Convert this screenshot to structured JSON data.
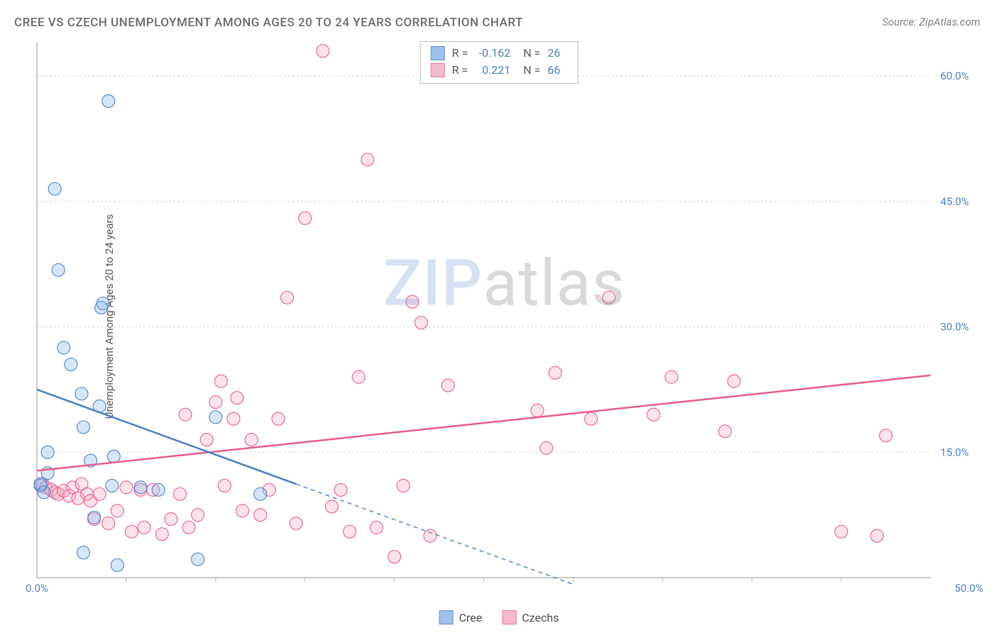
{
  "title": "CREE VS CZECH UNEMPLOYMENT AMONG AGES 20 TO 24 YEARS CORRELATION CHART",
  "source": "Source: ZipAtlas.com",
  "y_axis_label": "Unemployment Among Ages 20 to 24 years",
  "watermark_prefix": "ZIP",
  "watermark_suffix": "atlas",
  "chart": {
    "type": "scatter",
    "xlim": [
      0,
      50
    ],
    "ylim": [
      0,
      64
    ],
    "x_ticks_major": [
      0,
      50
    ],
    "x_ticks_minor": [
      5,
      10,
      15,
      20,
      25,
      30,
      35,
      40,
      45
    ],
    "y_ticks": [
      15,
      30,
      45,
      60
    ],
    "x_tick_labels": [
      "0.0%",
      "50.0%"
    ],
    "y_tick_labels": [
      "15.0%",
      "30.0%",
      "45.0%",
      "60.0%"
    ],
    "series": [
      {
        "name": "Cree",
        "label": "Cree",
        "color_fill": "#8db8e8",
        "color_stroke": "#4a7fc4",
        "marker_radius": 9,
        "R": "-0.162",
        "N": "26",
        "trend": {
          "x1": 0,
          "y1": 22.5,
          "x2": 14.5,
          "y2": 11.2,
          "solid_end_x": 14.5,
          "dash_end_x": 30,
          "dash_end_y": -0.8
        },
        "points": [
          [
            0.2,
            11.0
          ],
          [
            0.2,
            11.2
          ],
          [
            0.4,
            10.2
          ],
          [
            0.6,
            15.0
          ],
          [
            0.6,
            12.5
          ],
          [
            1.0,
            46.5
          ],
          [
            1.2,
            36.8
          ],
          [
            1.5,
            27.5
          ],
          [
            1.9,
            25.5
          ],
          [
            2.5,
            22.0
          ],
          [
            2.6,
            3.0
          ],
          [
            2.6,
            18.0
          ],
          [
            3.0,
            14.0
          ],
          [
            3.2,
            7.2
          ],
          [
            3.5,
            20.5
          ],
          [
            3.6,
            32.3
          ],
          [
            3.7,
            32.8
          ],
          [
            4.0,
            57.0
          ],
          [
            4.2,
            11.0
          ],
          [
            4.3,
            14.5
          ],
          [
            4.5,
            1.5
          ],
          [
            5.8,
            10.8
          ],
          [
            6.8,
            10.5
          ],
          [
            9.0,
            2.2
          ],
          [
            10.0,
            19.2
          ],
          [
            12.5,
            10.0
          ]
        ]
      },
      {
        "name": "Czechs",
        "label": "Czechs",
        "color_fill": "#f4b0c2",
        "color_stroke": "#e85b89",
        "marker_radius": 9,
        "R": "0.221",
        "N": "66",
        "trend": {
          "x1": 0,
          "y1": 12.8,
          "x2": 50,
          "y2": 24.2,
          "solid_end_x": 50
        },
        "points": [
          [
            0.3,
            11.2
          ],
          [
            0.5,
            10.8
          ],
          [
            0.8,
            10.5
          ],
          [
            1.0,
            10.2
          ],
          [
            1.2,
            10.0
          ],
          [
            1.5,
            10.4
          ],
          [
            1.8,
            9.8
          ],
          [
            2.0,
            10.8
          ],
          [
            2.3,
            9.5
          ],
          [
            2.5,
            11.2
          ],
          [
            2.8,
            10.0
          ],
          [
            3.0,
            9.2
          ],
          [
            3.2,
            7.0
          ],
          [
            3.5,
            10.0
          ],
          [
            4.0,
            6.5
          ],
          [
            4.5,
            8.0
          ],
          [
            5.0,
            10.8
          ],
          [
            5.3,
            5.5
          ],
          [
            5.8,
            10.5
          ],
          [
            6.0,
            6.0
          ],
          [
            6.5,
            10.5
          ],
          [
            7.0,
            5.2
          ],
          [
            7.5,
            7.0
          ],
          [
            8.0,
            10.0
          ],
          [
            8.3,
            19.5
          ],
          [
            8.5,
            6.0
          ],
          [
            9.0,
            7.5
          ],
          [
            9.5,
            16.5
          ],
          [
            10.0,
            21.0
          ],
          [
            10.3,
            23.5
          ],
          [
            10.5,
            11.0
          ],
          [
            11.0,
            19.0
          ],
          [
            11.2,
            21.5
          ],
          [
            11.5,
            8.0
          ],
          [
            12.0,
            16.5
          ],
          [
            12.5,
            7.5
          ],
          [
            13.0,
            10.5
          ],
          [
            13.5,
            19.0
          ],
          [
            14.0,
            33.5
          ],
          [
            14.5,
            6.5
          ],
          [
            15.0,
            43.0
          ],
          [
            16.0,
            63.0
          ],
          [
            16.5,
            8.5
          ],
          [
            17.0,
            10.5
          ],
          [
            17.5,
            5.5
          ],
          [
            18.0,
            24.0
          ],
          [
            18.5,
            50.0
          ],
          [
            19.0,
            6.0
          ],
          [
            20.0,
            2.5
          ],
          [
            20.5,
            11.0
          ],
          [
            21.0,
            33.0
          ],
          [
            21.5,
            30.5
          ],
          [
            22.0,
            5.0
          ],
          [
            23.0,
            23.0
          ],
          [
            28.0,
            20.0
          ],
          [
            28.5,
            15.5
          ],
          [
            29.0,
            24.5
          ],
          [
            31.0,
            19.0
          ],
          [
            32.0,
            33.5
          ],
          [
            34.5,
            19.5
          ],
          [
            35.5,
            24.0
          ],
          [
            38.5,
            17.5
          ],
          [
            39.0,
            23.5
          ],
          [
            45.0,
            5.5
          ],
          [
            47.0,
            5.0
          ],
          [
            47.5,
            17.0
          ]
        ]
      }
    ],
    "background_color": "#ffffff",
    "grid_color": "#d8d8d8",
    "axis_color": "#b8b8b8",
    "title_color": "#6b6b6b",
    "tick_label_color": "#4a7fc4"
  }
}
